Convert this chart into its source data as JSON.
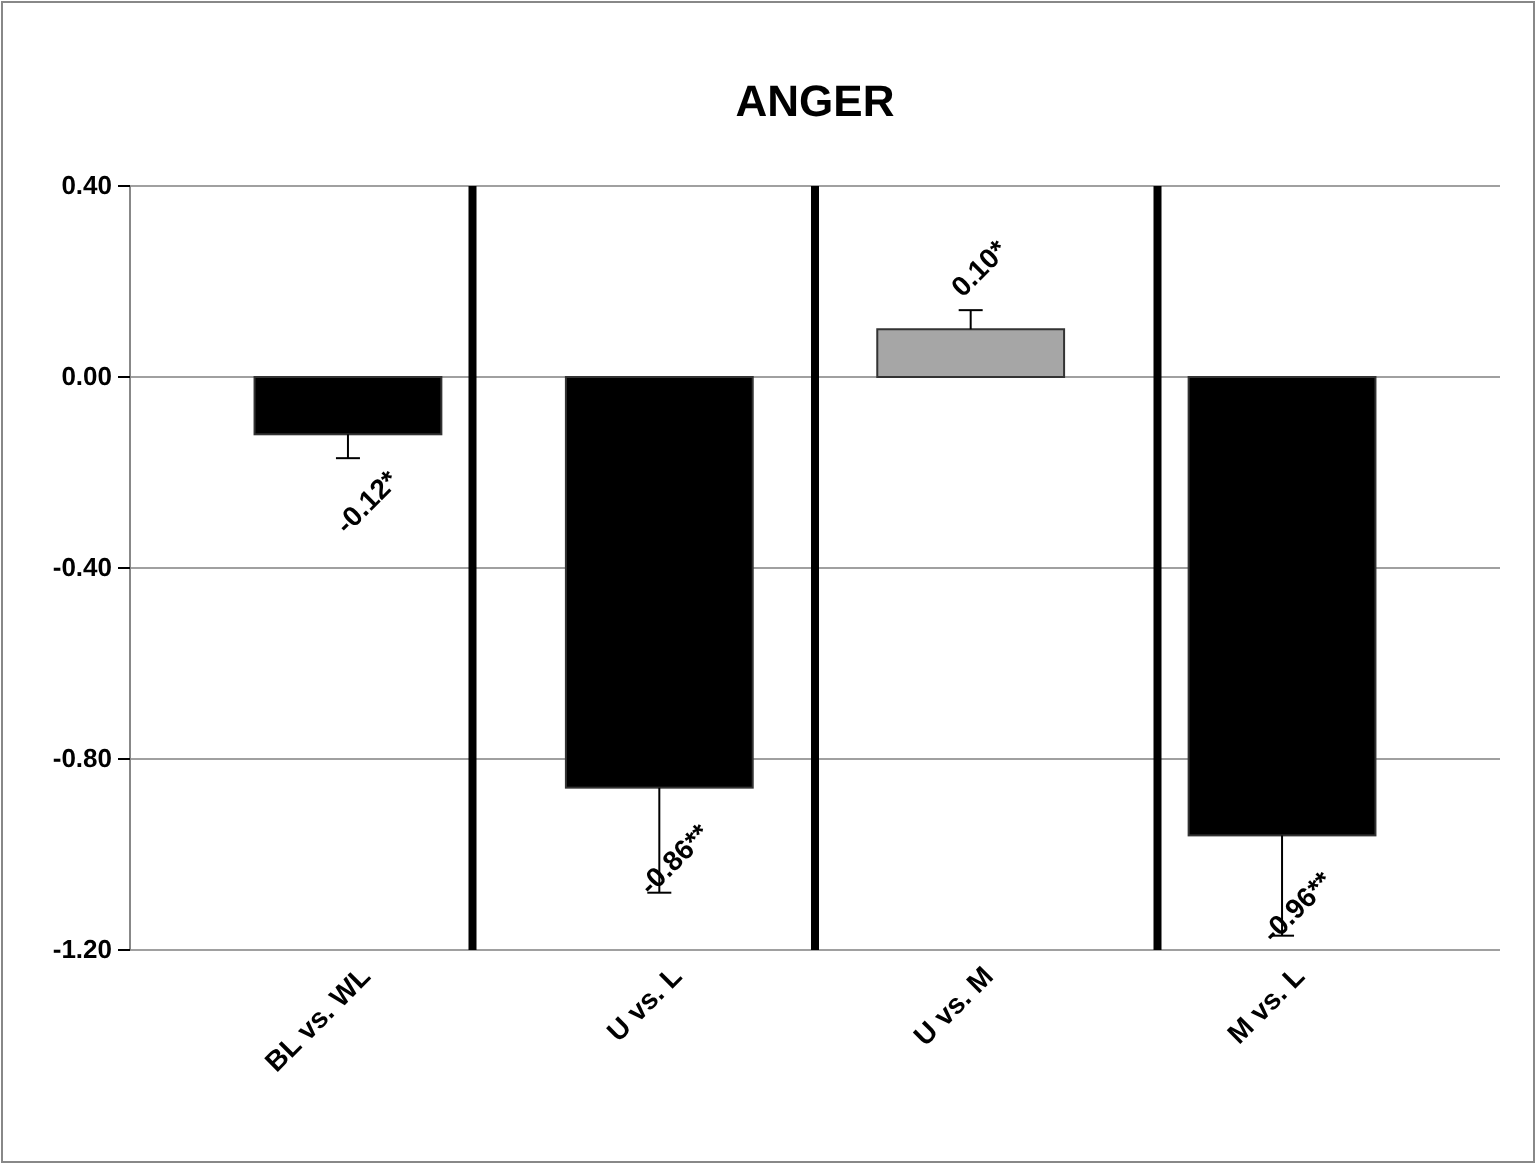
{
  "chart_data": {
    "type": "bar",
    "title": "ANGER",
    "categories": [
      "BL vs. WL",
      "U vs. L",
      "U vs. M",
      "M vs. L"
    ],
    "values": [
      -0.12,
      -0.86,
      0.1,
      -0.96
    ],
    "colors": [
      "#000000",
      "#000000",
      "#a6a6a6",
      "#000000"
    ],
    "errors": [
      [
        -0.17,
        -0.12
      ],
      [
        -1.08,
        -0.86
      ],
      [
        0.1,
        0.14
      ],
      [
        -1.17,
        -0.96
      ]
    ],
    "value_labels": [
      "-0.12*",
      "-0.86**",
      "0.10*",
      "-0.96**"
    ],
    "ylim": [
      -1.2,
      0.4
    ],
    "yticks": [
      {
        "value": 0.4,
        "label": "0.40"
      },
      {
        "value": 0,
        "label": "0.00"
      },
      {
        "value": -0.4,
        "label": "-0.40"
      },
      {
        "value": -0.8,
        "label": "-0.80"
      },
      {
        "value": -1.2,
        "label": "-1.20"
      }
    ],
    "grid": "y"
  }
}
